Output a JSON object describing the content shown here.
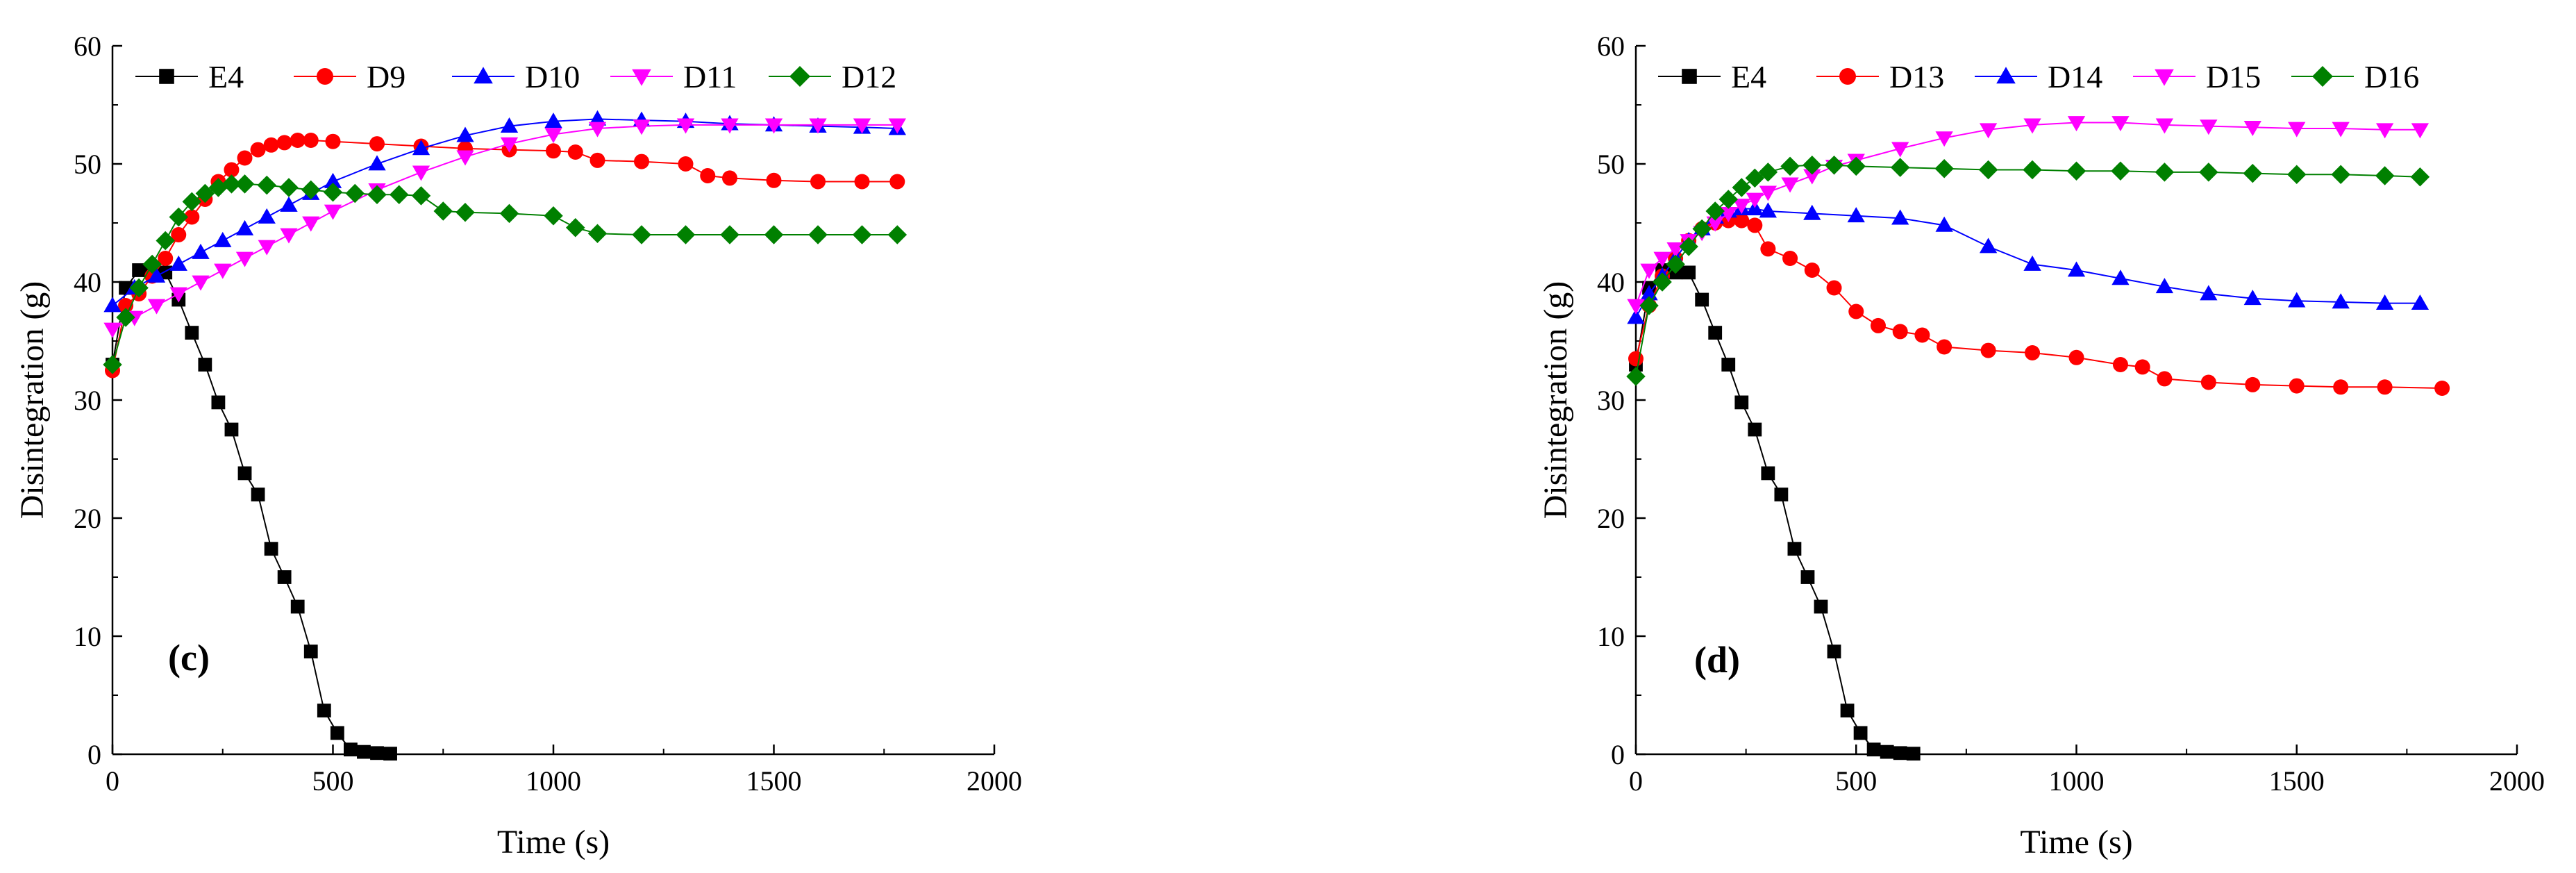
{
  "figure": {},
  "chart_data": [
    {
      "type": "line",
      "panel_label": "(c)",
      "xlabel": "Time (s)",
      "ylabel": "Disintegration (g)",
      "xlim": [
        0,
        2000
      ],
      "ylim": [
        0,
        60
      ],
      "xticks": [
        0,
        500,
        1000,
        1500,
        2000
      ],
      "yticks": [
        0,
        10,
        20,
        30,
        40,
        50,
        60
      ],
      "grid": false,
      "legend": "top, single row",
      "series": [
        {
          "name": "E4",
          "color": "#000000",
          "marker": "square",
          "x": [
            0,
            30,
            60,
            90,
            120,
            150,
            180,
            210,
            240,
            270,
            300,
            330,
            360,
            390,
            420,
            450,
            480,
            510,
            540,
            570,
            600,
            630
          ],
          "y": [
            33,
            39.5,
            41,
            40.8,
            40.8,
            38.5,
            35.7,
            33,
            29.8,
            27.5,
            23.8,
            22,
            17.4,
            15,
            12.5,
            8.7,
            3.7,
            1.8,
            0.4,
            0.2,
            0.1,
            0.05
          ]
        },
        {
          "name": "D9",
          "color": "#ff0000",
          "marker": "circle",
          "x": [
            0,
            30,
            60,
            90,
            120,
            150,
            180,
            210,
            240,
            270,
            300,
            330,
            360,
            390,
            420,
            450,
            500,
            600,
            700,
            800,
            900,
            1000,
            1050,
            1100,
            1200,
            1300,
            1350,
            1400,
            1500,
            1600,
            1700,
            1780
          ],
          "y": [
            32.5,
            38,
            39,
            40.5,
            42,
            44,
            45.5,
            47,
            48.5,
            49.5,
            50.5,
            51.2,
            51.6,
            51.8,
            52,
            52,
            51.9,
            51.7,
            51.5,
            51.3,
            51.2,
            51.1,
            51,
            50.3,
            50.2,
            50,
            49,
            48.8,
            48.6,
            48.5,
            48.5,
            48.5
          ]
        },
        {
          "name": "D10",
          "color": "#0000ff",
          "marker": "triangle-up",
          "x": [
            0,
            50,
            100,
            150,
            200,
            250,
            300,
            350,
            400,
            450,
            500,
            600,
            700,
            800,
            900,
            1000,
            1100,
            1200,
            1300,
            1400,
            1500,
            1600,
            1700,
            1780
          ],
          "y": [
            38,
            39.5,
            40.5,
            41.5,
            42.5,
            43.5,
            44.5,
            45.5,
            46.5,
            47.5,
            48.5,
            50,
            51.3,
            52.4,
            53.2,
            53.6,
            53.8,
            53.7,
            53.6,
            53.4,
            53.3,
            53.2,
            53.1,
            53
          ]
        },
        {
          "name": "D11",
          "color": "#ff00ff",
          "marker": "triangle-down",
          "x": [
            0,
            50,
            100,
            150,
            200,
            250,
            300,
            350,
            400,
            450,
            500,
            600,
            700,
            800,
            900,
            1000,
            1100,
            1200,
            1300,
            1400,
            1500,
            1600,
            1700,
            1780
          ],
          "y": [
            36,
            37,
            38,
            39,
            40,
            41,
            42,
            43,
            44,
            45,
            46,
            47.8,
            49.3,
            50.6,
            51.7,
            52.5,
            53,
            53.2,
            53.3,
            53.3,
            53.3,
            53.3,
            53.3,
            53.3
          ]
        },
        {
          "name": "D12",
          "color": "#008000",
          "marker": "diamond",
          "x": [
            0,
            30,
            60,
            90,
            120,
            150,
            180,
            210,
            240,
            270,
            300,
            350,
            400,
            450,
            500,
            550,
            600,
            650,
            700,
            750,
            800,
            900,
            1000,
            1050,
            1100,
            1200,
            1300,
            1400,
            1500,
            1600,
            1700,
            1780
          ],
          "y": [
            33,
            37,
            39.5,
            41.5,
            43.5,
            45.5,
            46.8,
            47.5,
            48,
            48.3,
            48.3,
            48.2,
            48,
            47.8,
            47.6,
            47.5,
            47.4,
            47.4,
            47.3,
            46,
            45.9,
            45.8,
            45.6,
            44.6,
            44.1,
            44,
            44,
            44,
            44,
            44,
            44,
            44
          ]
        }
      ]
    },
    {
      "type": "line",
      "panel_label": "(d)",
      "xlabel": "Time (s)",
      "ylabel": "Disintegration (g)",
      "xlim": [
        0,
        2000
      ],
      "ylim": [
        0,
        60
      ],
      "xticks": [
        0,
        500,
        1000,
        1500,
        2000
      ],
      "yticks": [
        0,
        10,
        20,
        30,
        40,
        50,
        60
      ],
      "grid": false,
      "legend": "top, single row",
      "series": [
        {
          "name": "E4",
          "color": "#000000",
          "marker": "square",
          "x": [
            0,
            30,
            60,
            90,
            120,
            150,
            180,
            210,
            240,
            270,
            300,
            330,
            360,
            390,
            420,
            450,
            480,
            510,
            540,
            570,
            600,
            630
          ],
          "y": [
            33,
            39.5,
            41,
            40.8,
            40.8,
            38.5,
            35.7,
            33,
            29.8,
            27.5,
            23.8,
            22,
            17.4,
            15,
            12.5,
            8.7,
            3.7,
            1.8,
            0.4,
            0.2,
            0.1,
            0.05
          ]
        },
        {
          "name": "D13",
          "color": "#ff0000",
          "marker": "circle",
          "x": [
            0,
            30,
            60,
            90,
            120,
            150,
            180,
            210,
            240,
            270,
            300,
            350,
            400,
            450,
            500,
            550,
            600,
            650,
            700,
            800,
            900,
            1000,
            1100,
            1150,
            1200,
            1300,
            1400,
            1500,
            1600,
            1700,
            1830
          ],
          "y": [
            33.5,
            38,
            40.5,
            42,
            43.5,
            44.5,
            45,
            45.2,
            45.2,
            44.8,
            42.8,
            42,
            41,
            39.5,
            37.5,
            36.3,
            35.8,
            35.5,
            34.5,
            34.2,
            34,
            33.6,
            33,
            32.8,
            31.8,
            31.5,
            31.3,
            31.2,
            31.1,
            31.1,
            31
          ]
        },
        {
          "name": "D14",
          "color": "#0000ff",
          "marker": "triangle-up",
          "x": [
            0,
            30,
            60,
            90,
            120,
            150,
            180,
            210,
            240,
            270,
            300,
            400,
            500,
            600,
            700,
            800,
            900,
            1000,
            1100,
            1200,
            1300,
            1400,
            1500,
            1600,
            1700,
            1780
          ],
          "y": [
            37,
            39,
            40.5,
            42,
            43.5,
            44.5,
            45.5,
            46,
            46.2,
            46.2,
            46,
            45.8,
            45.6,
            45.4,
            44.8,
            43,
            41.5,
            41,
            40.3,
            39.6,
            39,
            38.6,
            38.4,
            38.3,
            38.2,
            38.2
          ]
        },
        {
          "name": "D15",
          "color": "#ff00ff",
          "marker": "triangle-down",
          "x": [
            0,
            30,
            60,
            90,
            120,
            150,
            180,
            210,
            240,
            270,
            300,
            350,
            400,
            450,
            500,
            600,
            700,
            800,
            900,
            1000,
            1100,
            1200,
            1300,
            1400,
            1500,
            1600,
            1700,
            1780
          ],
          "y": [
            38,
            41,
            42,
            42.8,
            43.5,
            44.2,
            45,
            45.8,
            46.5,
            47,
            47.6,
            48.3,
            49,
            49.8,
            50.3,
            51.3,
            52.2,
            52.9,
            53.3,
            53.5,
            53.5,
            53.3,
            53.2,
            53.1,
            53,
            53,
            52.9,
            52.9
          ]
        },
        {
          "name": "D16",
          "color": "#008000",
          "marker": "diamond",
          "x": [
            0,
            30,
            60,
            90,
            120,
            150,
            180,
            210,
            240,
            270,
            300,
            350,
            400,
            450,
            500,
            600,
            700,
            800,
            900,
            1000,
            1100,
            1200,
            1300,
            1400,
            1500,
            1600,
            1700,
            1780
          ],
          "y": [
            32,
            38,
            40,
            41.5,
            43,
            44.5,
            46,
            47,
            48,
            48.8,
            49.3,
            49.8,
            49.9,
            49.9,
            49.8,
            49.7,
            49.6,
            49.5,
            49.5,
            49.4,
            49.4,
            49.3,
            49.3,
            49.2,
            49.1,
            49.1,
            49,
            48.9
          ]
        }
      ]
    }
  ]
}
